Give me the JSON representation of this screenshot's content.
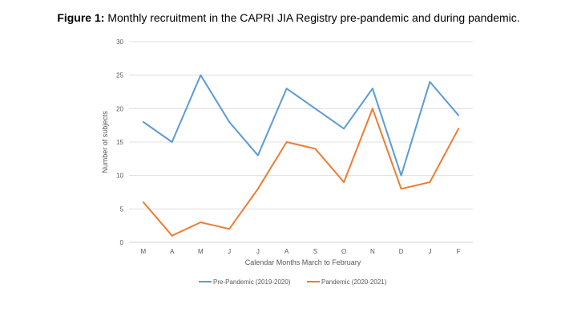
{
  "title": {
    "prefix": "Figure 1:",
    "text": " Monthly recruitment in the CAPRI JIA Registry pre-pandemic and during pandemic."
  },
  "chart_data": {
    "type": "line",
    "categories": [
      "M",
      "A",
      "M",
      "J",
      "J",
      "A",
      "S",
      "O",
      "N",
      "D",
      "J",
      "F"
    ],
    "series": [
      {
        "name": "Pre-Pandemic (2019-2020)",
        "color": "#5b9bd5",
        "values": [
          18,
          15,
          25,
          18,
          13,
          23,
          20,
          17,
          23,
          10,
          24,
          19
        ]
      },
      {
        "name": "Pandemic (2020-2021)",
        "color": "#ed7d31",
        "values": [
          6,
          1,
          3,
          2,
          8,
          15,
          14,
          9,
          20,
          8,
          9,
          17
        ]
      }
    ],
    "yticks": [
      0,
      5,
      10,
      15,
      20,
      25,
      30
    ],
    "ylim": [
      0,
      30
    ],
    "xlabel": "Calendar Months March to February",
    "ylabel": "Number of subjects",
    "grid": true,
    "legend_position": "bottom"
  }
}
